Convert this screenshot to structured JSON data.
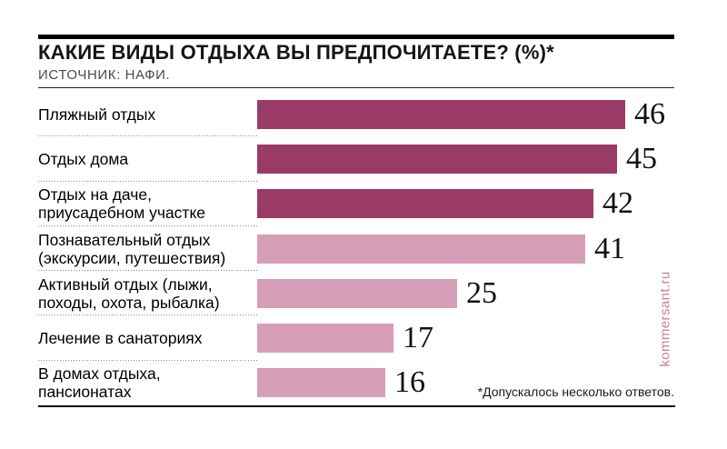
{
  "header": {
    "title": "КАКИЕ ВИДЫ ОТДЫХА ВЫ ПРЕДПОЧИТАЕТЕ? (%)*",
    "source": "ИСТОЧНИК: НАФИ."
  },
  "chart_data": {
    "type": "bar",
    "orientation": "horizontal",
    "title": "КАКИЕ ВИДЫ ОТДЫХА ВЫ ПРЕДПОЧИТАЕТЕ? (%)*",
    "source": "ИСТОЧНИК: НАФИ.",
    "unit": "%",
    "xlim": [
      0,
      46
    ],
    "grid": false,
    "legend": false,
    "value_labels": "end-of-bar",
    "categories": [
      "Пляжный отдых",
      "Отдых дома",
      "Отдых на даче, приусадебном участке",
      "Познавательный отдых (экскурсии, путешествия)",
      "Активный отдых (лыжи, походы, охота, рыбалка)",
      "Лечение в санаториях",
      "В домах отдыха, пансионатах"
    ],
    "values": [
      46,
      45,
      42,
      41,
      25,
      17,
      16
    ],
    "rows": [
      {
        "label": "Пляжный отдых",
        "value": 46,
        "tone": "dark"
      },
      {
        "label": "Отдых дома",
        "value": 45,
        "tone": "dark"
      },
      {
        "label": "Отдых на даче,\nприусадебном участке",
        "value": 42,
        "tone": "dark"
      },
      {
        "label": "Познавательный отдых\n(экскурсии, путешествия)",
        "value": 41,
        "tone": "light"
      },
      {
        "label": "Активный отдых (лыжи,\nпоходы, охота, рыбалка)",
        "value": 25,
        "tone": "light"
      },
      {
        "label": "Лечение в санаториях",
        "value": 17,
        "tone": "light"
      },
      {
        "label": "В домах отдыха,\nпансионатах",
        "value": 16,
        "tone": "light"
      }
    ],
    "colors": {
      "dark": "#9a3a67",
      "light": "#d69eb7"
    }
  },
  "footnote": "*Допускалось несколько ответов.",
  "credit": "kommersant.ru"
}
